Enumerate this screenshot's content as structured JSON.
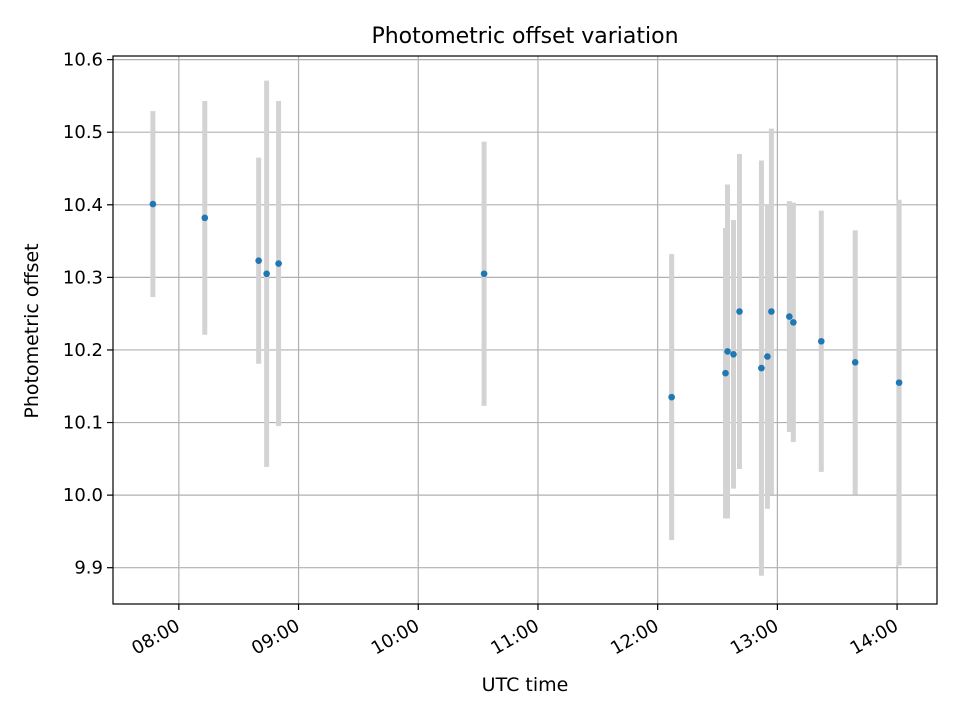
{
  "chart_data": {
    "type": "scatter",
    "title": "Photometric offset variation",
    "xlabel": "UTC time",
    "ylabel": "Photometric offset",
    "xlim": [
      "07:27",
      "14:20"
    ],
    "ylim": [
      9.85,
      10.605
    ],
    "grid": true,
    "x_ticks": [
      "08:00",
      "09:00",
      "10:00",
      "11:00",
      "12:00",
      "13:00",
      "14:00"
    ],
    "y_ticks": [
      "9.9",
      "10.0",
      "10.1",
      "10.2",
      "10.3",
      "10.4",
      "10.5",
      "10.6"
    ],
    "colors": {
      "points": "#1f77b4",
      "errorbars": "#d3d3d3",
      "grid": "#b0b0b0"
    },
    "points": [
      {
        "x": "07:47",
        "y": 10.401,
        "err": 0.128
      },
      {
        "x": "08:13",
        "y": 10.382,
        "err": 0.161
      },
      {
        "x": "08:40",
        "y": 10.323,
        "err": 0.142
      },
      {
        "x": "08:44",
        "y": 10.305,
        "err": 0.266
      },
      {
        "x": "08:50",
        "y": 10.319,
        "err": 0.224
      },
      {
        "x": "10:33",
        "y": 10.305,
        "err": 0.182
      },
      {
        "x": "12:07",
        "y": 10.135,
        "err": 0.197
      },
      {
        "x": "12:34",
        "y": 10.168,
        "err": 0.2
      },
      {
        "x": "12:35",
        "y": 10.198,
        "err": 0.23
      },
      {
        "x": "12:38",
        "y": 10.194,
        "err": 0.185
      },
      {
        "x": "12:41",
        "y": 10.253,
        "err": 0.217
      },
      {
        "x": "12:52",
        "y": 10.175,
        "err": 0.286
      },
      {
        "x": "12:55",
        "y": 10.191,
        "err": 0.21
      },
      {
        "x": "12:57",
        "y": 10.253,
        "err": 0.252
      },
      {
        "x": "13:06",
        "y": 10.246,
        "err": 0.159
      },
      {
        "x": "13:08",
        "y": 10.238,
        "err": 0.165
      },
      {
        "x": "13:22",
        "y": 10.212,
        "err": 0.18
      },
      {
        "x": "13:39",
        "y": 10.183,
        "err": 0.182
      },
      {
        "x": "14:01",
        "y": 10.155,
        "err": 0.252
      }
    ]
  }
}
